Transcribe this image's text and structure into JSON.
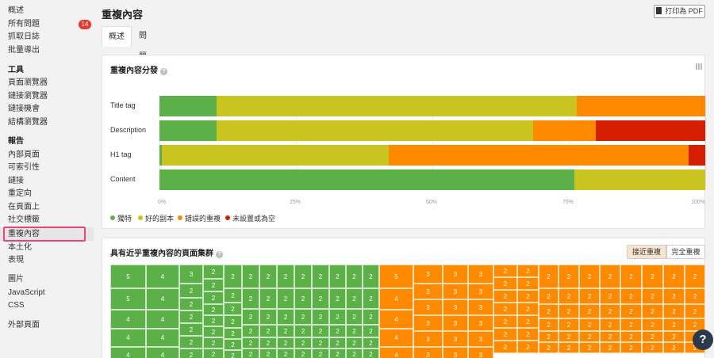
{
  "sidebar": {
    "group1": [
      {
        "label": "概述"
      },
      {
        "label": "所有問題",
        "badge": "14"
      },
      {
        "label": "抓取日誌"
      },
      {
        "label": "批量導出"
      }
    ],
    "tools_heading": "工具",
    "tools": [
      {
        "label": "頁面瀏覽器"
      },
      {
        "label": "鏈接瀏覽器"
      },
      {
        "label": "鏈接機會"
      },
      {
        "label": "結構瀏覽器"
      }
    ],
    "reports_heading": "報告",
    "reports": [
      {
        "label": "內部頁面"
      },
      {
        "label": "可索引性"
      },
      {
        "label": "鏈接"
      },
      {
        "label": "重定向"
      },
      {
        "label": "在頁面上"
      },
      {
        "label": "社交標籤"
      },
      {
        "label": "重複內容"
      },
      {
        "label": "本土化"
      },
      {
        "label": "表現"
      }
    ],
    "resources": [
      {
        "label": "圖片"
      },
      {
        "label": "JavaScript"
      },
      {
        "label": "CSS"
      }
    ],
    "external": [
      {
        "label": "外部頁面"
      }
    ],
    "active": "重複內容"
  },
  "header": {
    "title": "重複內容",
    "pdf_button": "打印為 PDF"
  },
  "tabs": [
    {
      "label": "概述",
      "active": true
    },
    {
      "label": "問題",
      "badge": "1",
      "active": false
    }
  ],
  "distribution": {
    "title": "重複內容分發",
    "help": "?"
  },
  "chart_data": {
    "type": "bar",
    "stacked": true,
    "orientation": "horizontal",
    "categories": [
      "Title tag",
      "Description",
      "H1 tag",
      "Content"
    ],
    "series": [
      {
        "name": "獨特",
        "color": "#5bb048",
        "values": [
          10.5,
          10.5,
          0.4,
          76
        ]
      },
      {
        "name": "好的副本",
        "color": "#c9c41f",
        "values": [
          66,
          58,
          41.6,
          24
        ]
      },
      {
        "name": "錯誤的重複",
        "color": "#ff8a00",
        "values": [
          23.5,
          11.5,
          55,
          0
        ]
      },
      {
        "name": "未設置或為空",
        "color": "#d61f00",
        "values": [
          0,
          20,
          3,
          0
        ]
      }
    ],
    "xticks": [
      "0%",
      "25%",
      "50%",
      "75%",
      "100%"
    ],
    "xlim": [
      0,
      100
    ],
    "grid": true,
    "legend": "bottom-left"
  },
  "clusters": {
    "title": "具有近乎重複內容的頁面集群",
    "help": "?",
    "toggle_near": "接近重複",
    "toggle_exact": "完全重複",
    "green_color": "#5bb048",
    "orange_color": "#ff8a00"
  },
  "fab": "?"
}
